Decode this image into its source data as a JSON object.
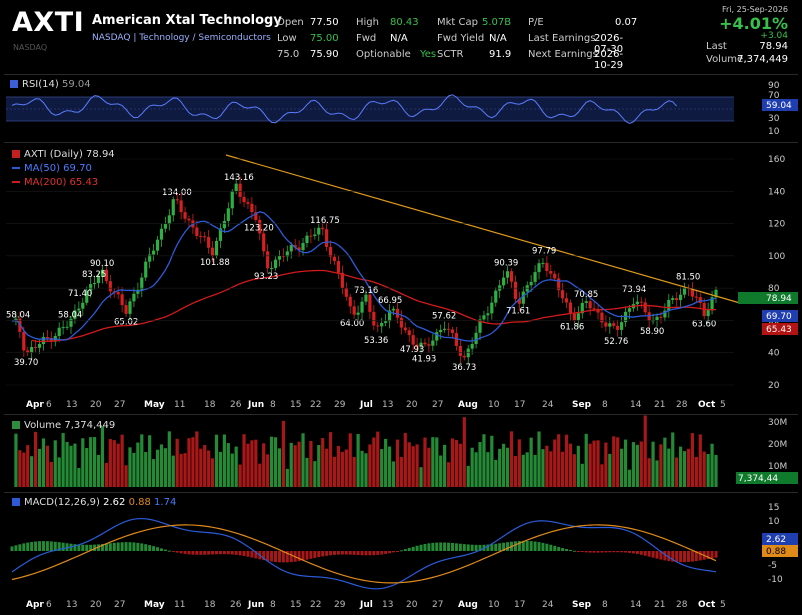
{
  "header": {
    "ticker": "AXTI",
    "exchange": "NASDAQ",
    "company": "American Xtal Technology",
    "sector_line": "NASDAQ | Technology / Semiconductors",
    "stats": [
      {
        "k": "Open",
        "v": "77.50"
      },
      {
        "k": "High",
        "v": "80.43"
      },
      {
        "k": "Mkt Cap",
        "v": "5.07B"
      },
      {
        "k": "P/E",
        "v": "0.07"
      },
      {
        "k": "Low",
        "v": "75.00"
      },
      {
        "k": "Fwd",
        "v": "N/A"
      },
      {
        "k": "Fwd Yield",
        "v": "N/A"
      },
      {
        "k": "Last Earnings",
        "v": "2026-07-30"
      },
      {
        "k": "75.0",
        "v": "75.90"
      },
      {
        "k": "Optionable",
        "v": "Yes"
      },
      {
        "k": "SCTR",
        "v": "91.9"
      },
      {
        "k": "Next Earnings",
        "v": "2026-10-29"
      }
    ],
    "date": "Fri, 25-Sep-2026",
    "change_pct": "+4.01%",
    "change_abs": "+3.04",
    "last_label": "Last",
    "last_value": "78.94",
    "volume_label": "Volume",
    "volume_value": "7,374,449"
  },
  "rsi_panel": {
    "label": "RSI(14)",
    "value": "59.04",
    "ticks": [
      "90",
      "70",
      "50",
      "30",
      "10"
    ]
  },
  "price_panel": {
    "title": "AXTI (Daily) 78.94",
    "ma50_label": "MA(50) 69.70",
    "ma200_label": "MA(200) 65.43",
    "last_badge": "78.94",
    "ma50_badge": "69.70",
    "ma200_badge": "65.43",
    "y_ticks": [
      "160",
      "140",
      "120",
      "100",
      "80",
      "60",
      "40",
      "20"
    ],
    "annotations": [
      "143.16",
      "134.00",
      "123.20",
      "116.75",
      "101.88",
      "93.23",
      "90.10",
      "83.25",
      "71.40",
      "65.02",
      "58.04",
      "58.04",
      "39.70",
      "73.16",
      "66.95",
      "64.00",
      "57.62",
      "53.36",
      "47.93",
      "41.93",
      "36.73",
      "97.79",
      "90.39",
      "71.61",
      "70.85",
      "61.86",
      "73.94",
      "81.50",
      "63.60",
      "58.90",
      "52.76"
    ]
  },
  "volume_panel": {
    "label": "Volume 7,374,449",
    "ticks": [
      "30M",
      "20M",
      "10M"
    ],
    "badge": "7,374,44"
  },
  "macd_panel": {
    "label": "MACD(12,26,9)",
    "v1": "2.62",
    "v2": "0.88",
    "v3": "1.74",
    "ticks": [
      "15",
      "10",
      "5",
      "0",
      "-5",
      "-10"
    ],
    "badge1": "2.62",
    "badge2": "0.88"
  },
  "x_axis": [
    "Apr",
    "6",
    "13",
    "20",
    "27",
    "May",
    "11",
    "18",
    "26",
    "Jun",
    "8",
    "15",
    "22",
    "29",
    "Jul",
    "13",
    "20",
    "27",
    "Aug",
    "10",
    "17",
    "24",
    "Sep",
    "8",
    "14",
    "21",
    "28",
    "Oct",
    "5"
  ],
  "chart_data": {
    "type": "line",
    "title": "AXTI (Daily) 78.94",
    "series": [
      {
        "name": "AXTI (Daily)",
        "points": [
          [
            "Apr 6",
            58.04
          ],
          [
            "Apr 9",
            39.7
          ],
          [
            "Apr 20",
            58.04
          ],
          [
            "Apr 24",
            71.4
          ],
          [
            "Apr 27",
            83.25
          ],
          [
            "Apr 29",
            90.1
          ],
          [
            "May 4",
            65.02
          ],
          [
            "May 11",
            134.0
          ],
          [
            "May 18",
            101.88
          ],
          [
            "May 26",
            143.16
          ],
          [
            "Jun 1",
            123.2
          ],
          [
            "Jun 5",
            93.23
          ],
          [
            "Jun 18",
            116.75
          ],
          [
            "Jun 29",
            64.0
          ],
          [
            "Jul 1",
            73.16
          ],
          [
            "Jul 6",
            53.36
          ],
          [
            "Jul 9",
            66.95
          ],
          [
            "Jul 16",
            47.93
          ],
          [
            "Jul 20",
            41.93
          ],
          [
            "Jul 24",
            57.62
          ],
          [
            "Jul 30",
            36.73
          ],
          [
            "Aug 6",
            90.39
          ],
          [
            "Aug 10",
            71.61
          ],
          [
            "Aug 17",
            97.79
          ],
          [
            "Aug 24",
            61.86
          ],
          [
            "Aug 28",
            70.85
          ],
          [
            "Sep 3",
            52.76
          ],
          [
            "Sep 8",
            73.94
          ],
          [
            "Sep 14",
            58.9
          ],
          [
            "Sep 21",
            81.5
          ],
          [
            "Sep 24",
            63.6
          ],
          [
            "Sep 25",
            78.94
          ]
        ]
      }
    ],
    "ylim": [
      20,
      160
    ]
  }
}
